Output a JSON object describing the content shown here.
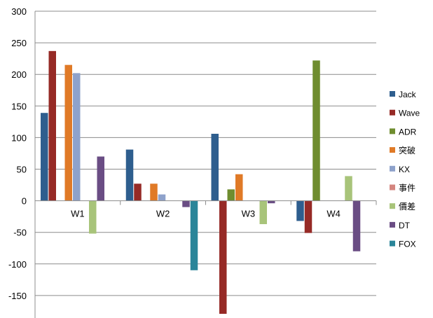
{
  "chart_data": {
    "type": "bar",
    "title": "",
    "xlabel": "",
    "ylabel": "",
    "ylim": [
      -185,
      300
    ],
    "yticks": [
      300,
      250,
      200,
      150,
      100,
      50,
      0,
      -50,
      -100,
      -150
    ],
    "ytick_labels": [
      "300",
      "250",
      "200",
      "150",
      "100",
      "50",
      "0",
      "-50",
      "-100",
      "-150"
    ],
    "grid": true,
    "legend_position": "right",
    "categories": [
      "W1",
      "W2",
      "W3",
      "W4"
    ],
    "series": [
      {
        "name": "Jack",
        "color": "#2e5e8e",
        "values": [
          139,
          81,
          106,
          -32
        ]
      },
      {
        "name": "Wave",
        "color": "#962a26",
        "values": [
          237,
          27,
          -179,
          -51
        ]
      },
      {
        "name": "ADR",
        "color": "#6f8d2f",
        "values": [
          0,
          0,
          18,
          222
        ]
      },
      {
        "name": "突破",
        "color": "#e07a27",
        "values": [
          215,
          27,
          42,
          0
        ]
      },
      {
        "name": "KX",
        "color": "#8ea2cb",
        "values": [
          202,
          10,
          0,
          0
        ]
      },
      {
        "name": "事件",
        "color": "#d4857f",
        "values": [
          0,
          0,
          0,
          0
        ]
      },
      {
        "name": "價差",
        "color": "#a8c47a",
        "values": [
          -52,
          0,
          -37,
          39
        ]
      },
      {
        "name": "DT",
        "color": "#6a4d84",
        "values": [
          70,
          -10,
          -4,
          -80
        ]
      },
      {
        "name": "FOX",
        "color": "#2a8599",
        "values": [
          0,
          -110,
          0,
          0
        ]
      }
    ]
  }
}
